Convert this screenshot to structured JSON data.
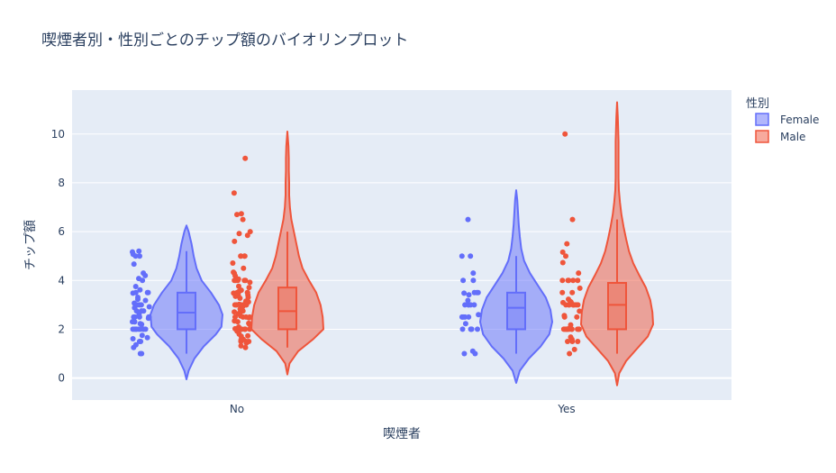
{
  "chart_data": {
    "type": "violin",
    "title": "喫煙者別・性別ごとのチップ額のバイオリンプロット",
    "xlabel": "喫煙者",
    "ylabel": "チップ額",
    "categories": [
      "No",
      "Yes"
    ],
    "ylim": [
      -0.9,
      11.8
    ],
    "yticks": [
      0,
      2,
      4,
      6,
      8,
      10
    ],
    "grid": true,
    "legend": {
      "title": "性別",
      "placement": "top-right"
    },
    "series": [
      {
        "name": "Female",
        "color": "#636efa",
        "groups": [
          {
            "category": "No",
            "box": {
              "min": 1.0,
              "q1": 2.0,
              "median": 2.68,
              "q3": 3.5,
              "max": 5.2
            },
            "violin": {
              "y": [
                -0.05,
                0.3,
                0.8,
                1.3,
                1.8,
                2.1,
                2.6,
                3.0,
                3.5,
                4.0,
                4.5,
                5.0,
                5.5,
                6.0,
                6.25
              ],
              "w": [
                0.0,
                0.06,
                0.22,
                0.48,
                0.82,
                0.97,
                1.0,
                0.9,
                0.68,
                0.42,
                0.28,
                0.2,
                0.14,
                0.06,
                0.0
              ]
            },
            "points": [
              1.0,
              1.0,
              1.25,
              1.36,
              1.5,
              1.5,
              1.61,
              1.66,
              1.75,
              2.0,
              2.0,
              2.0,
              2.0,
              2.0,
              2.0,
              2.0,
              2.0,
              2.0,
              2.2,
              2.23,
              2.3,
              2.31,
              2.45,
              2.5,
              2.5,
              2.5,
              2.5,
              2.5,
              2.6,
              2.75,
              2.75,
              2.75,
              2.88,
              2.92,
              3.0,
              3.0,
              3.0,
              3.0,
              3.07,
              3.18,
              3.23,
              3.31,
              3.48,
              3.5,
              3.5,
              3.5,
              3.61,
              3.75,
              4.0,
              4.08,
              4.2,
              4.3,
              4.67,
              5.0,
              5.0,
              5.07,
              5.17,
              5.2
            ]
          },
          {
            "category": "Yes",
            "box": {
              "min": 1.0,
              "q1": 2.0,
              "median": 2.88,
              "q3": 3.5,
              "max": 5.0
            },
            "violin": {
              "y": [
                -0.2,
                0.3,
                0.8,
                1.3,
                1.8,
                2.3,
                2.8,
                3.3,
                3.8,
                4.3,
                4.8,
                5.3,
                5.8,
                6.3,
                6.8,
                7.3,
                7.7
              ],
              "w": [
                0.0,
                0.1,
                0.35,
                0.68,
                0.92,
                1.0,
                0.95,
                0.82,
                0.6,
                0.38,
                0.22,
                0.14,
                0.1,
                0.07,
                0.05,
                0.03,
                0.0
              ]
            },
            "points": [
              1.0,
              1.0,
              1.1,
              2.0,
              2.0,
              2.0,
              2.0,
              2.0,
              2.23,
              2.5,
              2.5,
              2.5,
              2.5,
              2.6,
              3.0,
              3.0,
              3.0,
              3.0,
              3.0,
              3.18,
              3.41,
              3.48,
              3.5,
              3.5,
              3.5,
              4.0,
              4.0,
              4.3,
              5.0,
              5.0,
              6.5
            ]
          }
        ]
      },
      {
        "name": "Male",
        "color": "#ef553b",
        "groups": [
          {
            "category": "No",
            "box": {
              "min": 1.25,
              "q1": 2.0,
              "median": 2.74,
              "q3": 3.71,
              "max": 6.0
            },
            "violin": {
              "y": [
                0.15,
                0.6,
                1.1,
                1.6,
                2.0,
                2.5,
                3.0,
                3.5,
                4.0,
                4.5,
                5.0,
                5.5,
                6.0,
                6.5,
                7.0,
                7.5,
                8.0,
                8.5,
                9.0,
                9.5,
                10.1
              ],
              "w": [
                0.0,
                0.06,
                0.3,
                0.72,
                1.0,
                0.98,
                0.92,
                0.8,
                0.6,
                0.42,
                0.32,
                0.25,
                0.18,
                0.11,
                0.07,
                0.05,
                0.05,
                0.04,
                0.04,
                0.03,
                0.0
              ]
            },
            "points": [
              1.25,
              1.32,
              1.44,
              1.5,
              1.5,
              1.5,
              1.57,
              1.58,
              1.71,
              1.73,
              1.8,
              1.92,
              2.0,
              2.0,
              2.0,
              2.0,
              2.0,
              2.0,
              2.0,
              2.0,
              2.0,
              2.0,
              2.01,
              2.02,
              2.09,
              2.2,
              2.24,
              2.31,
              2.34,
              2.47,
              2.5,
              2.5,
              2.5,
              2.5,
              2.55,
              2.64,
              2.71,
              2.72,
              2.75,
              2.83,
              2.92,
              3.0,
              3.0,
              3.0,
              3.0,
              3.0,
              3.0,
              3.0,
              3.02,
              3.06,
              3.12,
              3.15,
              3.27,
              3.31,
              3.35,
              3.39,
              3.4,
              3.48,
              3.5,
              3.5,
              3.5,
              3.55,
              3.6,
              3.71,
              3.76,
              3.92,
              4.0,
              4.0,
              4.0,
              4.0,
              4.0,
              4.06,
              4.19,
              4.29,
              4.34,
              4.5,
              4.71,
              5.0,
              5.0,
              5.0,
              5.0,
              5.6,
              5.85,
              5.92,
              6.0,
              6.5,
              6.7,
              6.73,
              7.58,
              9.0
            ]
          },
          {
            "category": "Yes",
            "box": {
              "min": 1.0,
              "q1": 2.0,
              "median": 3.0,
              "q3": 3.9,
              "max": 6.5
            },
            "violin": {
              "y": [
                -0.3,
                0.2,
                0.7,
                1.2,
                1.7,
                2.2,
                2.7,
                3.2,
                3.7,
                4.2,
                4.7,
                5.2,
                5.7,
                6.2,
                6.7,
                7.2,
                7.7,
                8.2,
                8.7,
                9.2,
                9.7,
                10.2,
                10.7,
                11.3
              ],
              "w": [
                0.0,
                0.06,
                0.25,
                0.55,
                0.85,
                1.0,
                0.98,
                0.92,
                0.8,
                0.62,
                0.45,
                0.33,
                0.25,
                0.18,
                0.12,
                0.08,
                0.05,
                0.04,
                0.04,
                0.04,
                0.04,
                0.03,
                0.02,
                0.0
              ]
            },
            "points": [
              1.0,
              1.17,
              1.5,
              1.5,
              1.5,
              1.58,
              1.68,
              2.0,
              2.0,
              2.0,
              2.0,
              2.0,
              2.0,
              2.0,
              2.0,
              2.0,
              2.0,
              2.0,
              2.0,
              2.03,
              2.18,
              2.5,
              2.5,
              2.56,
              2.74,
              3.0,
              3.0,
              3.0,
              3.0,
              3.0,
              3.0,
              3.0,
              3.0,
              3.09,
              3.11,
              3.14,
              3.23,
              3.5,
              3.5,
              3.68,
              4.0,
              4.0,
              4.0,
              4.0,
              4.0,
              4.3,
              4.73,
              5.0,
              5.16,
              5.5,
              6.5,
              10.0
            ]
          }
        ]
      }
    ]
  }
}
